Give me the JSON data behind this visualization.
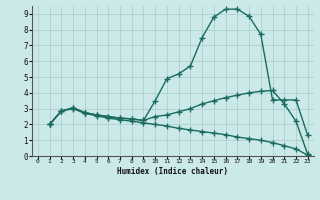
{
  "xlabel": "Humidex (Indice chaleur)",
  "bg_color": "#cce9e9",
  "grid_color": "#b8d8d8",
  "line_color": "#1a6b60",
  "xlim": [
    -0.5,
    23.5
  ],
  "ylim": [
    0,
    9.5
  ],
  "xticks": [
    0,
    1,
    2,
    3,
    4,
    5,
    6,
    7,
    8,
    9,
    10,
    11,
    12,
    13,
    14,
    15,
    16,
    17,
    18,
    19,
    20,
    21,
    22,
    23
  ],
  "yticks": [
    0,
    1,
    2,
    3,
    4,
    5,
    6,
    7,
    8,
    9
  ],
  "line1_x": [
    1,
    2,
    3,
    4,
    5,
    6,
    7,
    8,
    9,
    10,
    11,
    12,
    13,
    14,
    15,
    16,
    17,
    18,
    19,
    20,
    21,
    22,
    23
  ],
  "line1_y": [
    2.0,
    2.85,
    3.05,
    2.75,
    2.6,
    2.5,
    2.4,
    2.35,
    2.25,
    3.5,
    4.9,
    5.2,
    5.7,
    7.5,
    8.8,
    9.3,
    9.3,
    8.85,
    7.7,
    3.55,
    3.55,
    3.55,
    1.3
  ],
  "line2_x": [
    1,
    2,
    3,
    4,
    5,
    6,
    7,
    8,
    9,
    10,
    11,
    12,
    13,
    14,
    15,
    16,
    17,
    18,
    19,
    20,
    21,
    22,
    23
  ],
  "line2_y": [
    2.0,
    2.85,
    3.05,
    2.75,
    2.6,
    2.5,
    2.4,
    2.35,
    2.25,
    2.5,
    2.6,
    2.8,
    3.0,
    3.3,
    3.5,
    3.7,
    3.85,
    4.0,
    4.1,
    4.15,
    3.3,
    2.2,
    0.1
  ],
  "line3_x": [
    1,
    2,
    3,
    4,
    5,
    6,
    7,
    8,
    9,
    10,
    11,
    12,
    13,
    14,
    15,
    16,
    17,
    18,
    19,
    20,
    21,
    22,
    23
  ],
  "line3_y": [
    2.0,
    2.85,
    3.0,
    2.7,
    2.55,
    2.4,
    2.3,
    2.2,
    2.1,
    2.0,
    1.9,
    1.75,
    1.65,
    1.55,
    1.45,
    1.35,
    1.2,
    1.1,
    1.0,
    0.85,
    0.65,
    0.45,
    0.05
  ]
}
